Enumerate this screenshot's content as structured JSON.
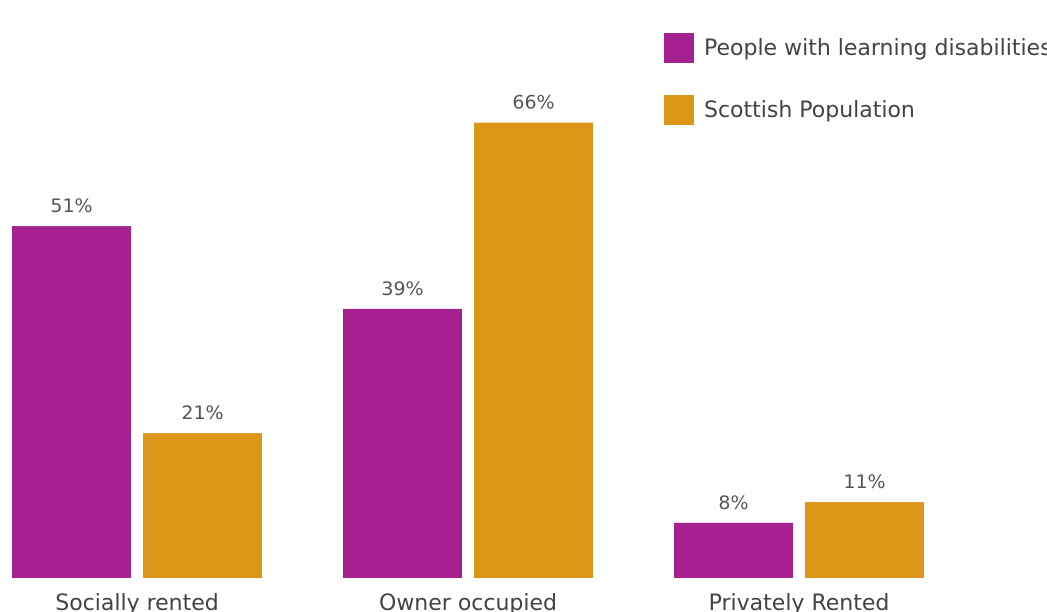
{
  "chart_data": {
    "type": "bar",
    "categories": [
      "Socially rented",
      "Owner occupied",
      "Privately Rented"
    ],
    "series": [
      {
        "name": "People with learning disabilities",
        "color": "#a6208f",
        "values": [
          51,
          39,
          8
        ],
        "labels": [
          "51%",
          "39%",
          "8%"
        ]
      },
      {
        "name": "Scottish Population",
        "color": "#dc9718",
        "values": [
          21,
          66,
          11
        ],
        "labels": [
          "21%",
          "66%",
          "11%"
        ]
      }
    ],
    "unit": "%",
    "ylim": [
      0,
      100
    ],
    "grid": false,
    "legend_position": "top-right",
    "title": "",
    "xlabel": "",
    "ylabel": ""
  }
}
